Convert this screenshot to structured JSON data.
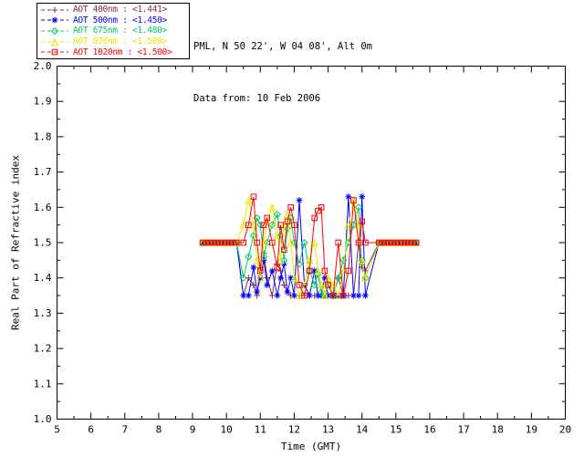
{
  "header": {
    "location_line": "PML, N 50 22', W 04 08', Alt 0m",
    "date_line": "Data from: 10 Feb 2006"
  },
  "chart_data": {
    "type": "line",
    "title": "",
    "xlabel": "Time (GMT)",
    "ylabel": "Real Part of Refractive index",
    "xlim": [
      5,
      20
    ],
    "ylim": [
      1.0,
      2.0
    ],
    "xticks": [
      5,
      6,
      7,
      8,
      9,
      10,
      11,
      12,
      13,
      14,
      15,
      16,
      17,
      18,
      19,
      20
    ],
    "yticks": [
      1.0,
      1.1,
      1.2,
      1.3,
      1.4,
      1.5,
      1.6,
      1.7,
      1.8,
      1.9,
      2.0
    ],
    "grid": false,
    "legend_position": "top-left-outside",
    "axis_color": "#000000",
    "background_color": "#ffffff",
    "x": [
      9.3,
      9.4,
      9.5,
      9.6,
      9.7,
      9.8,
      9.9,
      10.0,
      10.1,
      10.2,
      10.3,
      10.5,
      10.65,
      10.8,
      10.9,
      11.0,
      11.1,
      11.2,
      11.35,
      11.5,
      11.6,
      11.7,
      11.8,
      11.9,
      12.0,
      12.15,
      12.3,
      12.45,
      12.6,
      12.7,
      12.8,
      12.9,
      13.0,
      13.15,
      13.3,
      13.45,
      13.6,
      13.75,
      13.9,
      14.0,
      14.1,
      14.5,
      14.6,
      14.7,
      14.8,
      14.9,
      15.0,
      15.1,
      15.2,
      15.3,
      15.4,
      15.5,
      15.6
    ],
    "series": [
      {
        "name": "AOT 400nm",
        "legend_label": "AOT  400nm : <1.441>",
        "color": "#8b2252",
        "marker": "plus",
        "values": [
          1.5,
          1.5,
          1.5,
          1.5,
          1.5,
          1.5,
          1.5,
          1.5,
          1.5,
          1.5,
          1.5,
          1.35,
          1.4,
          1.38,
          1.35,
          1.43,
          1.47,
          1.4,
          1.35,
          1.44,
          1.42,
          1.38,
          1.36,
          1.35,
          1.35,
          1.35,
          1.35,
          1.35,
          1.35,
          1.35,
          1.35,
          1.35,
          1.35,
          1.35,
          1.4,
          1.35,
          1.35,
          1.35,
          1.5,
          1.43,
          1.42,
          1.5,
          1.5,
          1.5,
          1.5,
          1.5,
          1.5,
          1.5,
          1.5,
          1.5,
          1.5,
          1.5,
          1.5
        ]
      },
      {
        "name": "AOT 500nm",
        "legend_label": "AOT  500nm : <1.450>",
        "color": "#0000ff",
        "marker": "asterisk",
        "values": [
          1.5,
          1.5,
          1.5,
          1.5,
          1.5,
          1.5,
          1.5,
          1.5,
          1.5,
          1.5,
          1.5,
          1.35,
          1.35,
          1.43,
          1.36,
          1.4,
          1.45,
          1.38,
          1.42,
          1.35,
          1.4,
          1.44,
          1.36,
          1.4,
          1.35,
          1.62,
          1.38,
          1.35,
          1.42,
          1.35,
          1.35,
          1.4,
          1.35,
          1.35,
          1.35,
          1.35,
          1.63,
          1.35,
          1.35,
          1.63,
          1.35,
          1.5,
          1.5,
          1.5,
          1.5,
          1.5,
          1.5,
          1.5,
          1.5,
          1.5,
          1.5,
          1.5,
          1.5
        ]
      },
      {
        "name": "AOT 675nm",
        "legend_label": "AOT  675nm : <1.480>",
        "color": "#00cc66",
        "marker": "diamond",
        "values": [
          1.5,
          1.5,
          1.5,
          1.5,
          1.5,
          1.5,
          1.5,
          1.5,
          1.5,
          1.5,
          1.5,
          1.4,
          1.46,
          1.52,
          1.57,
          1.55,
          1.46,
          1.5,
          1.55,
          1.58,
          1.52,
          1.45,
          1.54,
          1.57,
          1.5,
          1.44,
          1.5,
          1.42,
          1.38,
          1.41,
          1.36,
          1.35,
          1.38,
          1.35,
          1.4,
          1.45,
          1.5,
          1.55,
          1.6,
          1.45,
          1.4,
          1.5,
          1.5,
          1.5,
          1.5,
          1.5,
          1.5,
          1.5,
          1.5,
          1.5,
          1.5,
          1.5,
          1.5
        ]
      },
      {
        "name": "AOT 870nm",
        "legend_label": "AOT  870nm : <1.509>",
        "color": "#e8e800",
        "marker": "triangle",
        "values": [
          1.5,
          1.5,
          1.5,
          1.5,
          1.5,
          1.5,
          1.5,
          1.5,
          1.5,
          1.5,
          1.5,
          1.55,
          1.62,
          1.55,
          1.45,
          1.4,
          1.5,
          1.56,
          1.6,
          1.52,
          1.45,
          1.55,
          1.58,
          1.5,
          1.4,
          1.35,
          1.38,
          1.45,
          1.5,
          1.42,
          1.38,
          1.35,
          1.4,
          1.38,
          1.35,
          1.42,
          1.55,
          1.62,
          1.55,
          1.45,
          1.4,
          1.5,
          1.5,
          1.5,
          1.5,
          1.5,
          1.5,
          1.5,
          1.5,
          1.5,
          1.5,
          1.5,
          1.5
        ]
      },
      {
        "name": "AOT 1020nm",
        "legend_label": "AOT 1020nm : <1.500>",
        "color": "#ff0000",
        "marker": "square",
        "values": [
          1.5,
          1.5,
          1.5,
          1.5,
          1.5,
          1.5,
          1.5,
          1.5,
          1.5,
          1.5,
          1.5,
          1.5,
          1.55,
          1.63,
          1.5,
          1.42,
          1.55,
          1.57,
          1.5,
          1.43,
          1.55,
          1.48,
          1.56,
          1.6,
          1.55,
          1.38,
          1.35,
          1.42,
          1.57,
          1.59,
          1.6,
          1.42,
          1.38,
          1.35,
          1.5,
          1.35,
          1.42,
          1.62,
          1.5,
          1.56,
          1.5,
          1.5,
          1.5,
          1.5,
          1.5,
          1.5,
          1.5,
          1.5,
          1.5,
          1.5,
          1.5,
          1.5,
          1.5
        ]
      }
    ]
  }
}
